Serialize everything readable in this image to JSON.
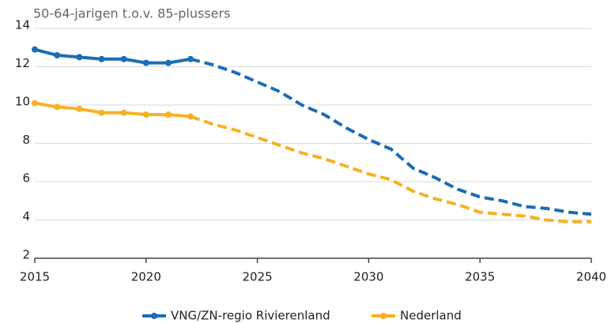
{
  "chart_data": {
    "type": "line",
    "title": "50-64-jarigen t.o.v. 85-plussers",
    "x": [
      2015,
      2016,
      2017,
      2018,
      2019,
      2020,
      2021,
      2022,
      2023,
      2024,
      2025,
      2026,
      2027,
      2028,
      2029,
      2030,
      2031,
      2032,
      2033,
      2034,
      2035,
      2036,
      2037,
      2038,
      2039,
      2040
    ],
    "series": [
      {
        "name": "VNG/ZN-regio Rivierenland",
        "color": "#1b6db4",
        "values": [
          12.9,
          12.6,
          12.5,
          12.4,
          12.4,
          12.2,
          12.2,
          12.4,
          12.1,
          11.7,
          11.2,
          10.7,
          10.0,
          9.5,
          8.8,
          8.2,
          7.7,
          6.7,
          6.2,
          5.6,
          5.2,
          5.0,
          4.7,
          4.6,
          4.4,
          4.3
        ]
      },
      {
        "name": "Nederland",
        "color": "#f4b223",
        "values": [
          10.1,
          9.9,
          9.8,
          9.6,
          9.6,
          9.5,
          9.5,
          9.4,
          9.0,
          8.7,
          8.3,
          7.9,
          7.5,
          7.2,
          6.8,
          6.4,
          6.1,
          5.5,
          5.1,
          4.8,
          4.4,
          4.3,
          4.2,
          4.0,
          3.9,
          3.9
        ]
      }
    ],
    "dashed_from": 2022,
    "xlim": [
      2015,
      2040
    ],
    "xticks": [
      2015,
      2020,
      2025,
      2030,
      2035,
      2040
    ],
    "ylim": [
      2,
      14
    ],
    "yticks": [
      2,
      4,
      6,
      8,
      10,
      12,
      14
    ],
    "grid": true,
    "legend": "bottom"
  }
}
